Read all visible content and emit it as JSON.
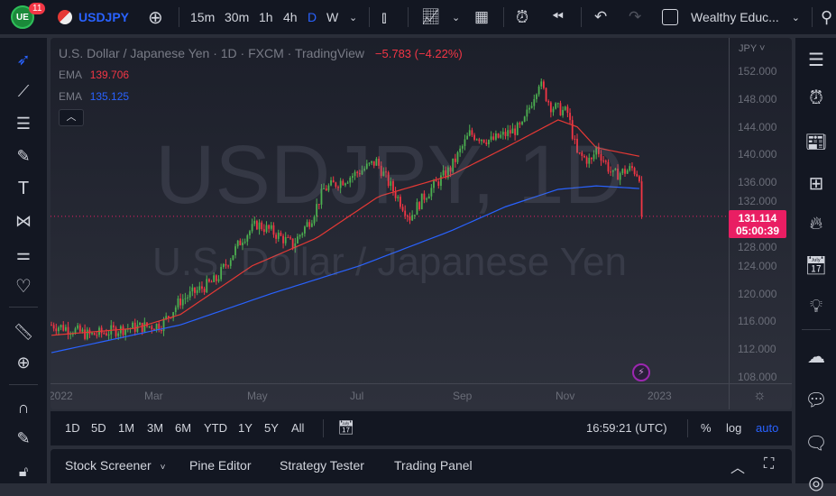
{
  "topbar": {
    "badge": "11",
    "symbol": "USDJPY",
    "intervals": [
      "15m",
      "30m",
      "1h",
      "4h",
      "D",
      "W"
    ],
    "active_interval": "D",
    "layout_name": "Wealthy Educ..."
  },
  "legend": {
    "title": "U.S. Dollar / Japanese Yen · 1D · FXCM · TradingView",
    "change": "−5.783 (−4.22%)",
    "ema1_label": "EMA",
    "ema1_value": "139.706",
    "ema2_label": "EMA",
    "ema2_value": "135.125"
  },
  "watermark": {
    "line1": "USDJPY, 1D",
    "line2": "U.S. Dollar / Japanese Yen"
  },
  "price_axis": {
    "currency": "JPY",
    "ticks": [
      "152.000",
      "148.000",
      "144.000",
      "140.000",
      "136.000",
      "132.000",
      "128.000",
      "124.000",
      "120.000",
      "116.000",
      "112.000",
      "108.000"
    ],
    "last_price": "131.114",
    "countdown": "05:00:39"
  },
  "time_axis": {
    "labels": [
      "2022",
      "Mar",
      "May",
      "Jul",
      "Sep",
      "Nov",
      "2023"
    ]
  },
  "ranges": [
    "1D",
    "5D",
    "1M",
    "3M",
    "6M",
    "YTD",
    "1Y",
    "5Y",
    "All"
  ],
  "clock": "16:59:21 (UTC)",
  "scale": {
    "percent": "%",
    "log": "log",
    "auto": "auto"
  },
  "panel_tabs": [
    "Stock Screener",
    "Pine Editor",
    "Strategy Tester",
    "Trading Panel"
  ],
  "colors": {
    "up": "#26a69a",
    "up_candle": "#4caf50",
    "down": "#f23645",
    "ema_red": "#e53935",
    "ema_blue": "#2962ff",
    "accent": "#2962ff",
    "price_label": "#e91e63"
  },
  "chart_data": {
    "type": "candlestick",
    "ylim": [
      106,
      154
    ],
    "price_path": [
      [
        0,
        115.5
      ],
      [
        7,
        115
      ],
      [
        16,
        114
      ],
      [
        31,
        115
      ],
      [
        46,
        115.5
      ],
      [
        54,
        119
      ],
      [
        69,
        122
      ],
      [
        80,
        128
      ],
      [
        86,
        130
      ],
      [
        92,
        129
      ],
      [
        101,
        127
      ],
      [
        109,
        131
      ],
      [
        114,
        135
      ],
      [
        126,
        137
      ],
      [
        136,
        139
      ],
      [
        141,
        136
      ],
      [
        150,
        131
      ],
      [
        156,
        134
      ],
      [
        167,
        138
      ],
      [
        175,
        143
      ],
      [
        184,
        142
      ],
      [
        197,
        144
      ],
      [
        204,
        150.5
      ],
      [
        209,
        147
      ],
      [
        216,
        146
      ],
      [
        220,
        140
      ],
      [
        226,
        139
      ],
      [
        228,
        141
      ],
      [
        235,
        137
      ],
      [
        243,
        138
      ],
      [
        246,
        137
      ],
      [
        247,
        131.1
      ]
    ],
    "ema_50": [
      [
        0,
        114
      ],
      [
        35,
        115
      ],
      [
        54,
        117
      ],
      [
        84,
        124
      ],
      [
        111,
        128
      ],
      [
        137,
        134
      ],
      [
        167,
        137
      ],
      [
        190,
        141
      ],
      [
        212,
        145
      ],
      [
        220,
        144
      ],
      [
        228,
        141
      ],
      [
        247,
        139.7
      ]
    ],
    "ema_200": [
      [
        0,
        111.5
      ],
      [
        54,
        115.5
      ],
      [
        92,
        120
      ],
      [
        129,
        124
      ],
      [
        167,
        129
      ],
      [
        190,
        132.5
      ],
      [
        212,
        135
      ],
      [
        228,
        135.5
      ],
      [
        247,
        135.1
      ]
    ]
  }
}
